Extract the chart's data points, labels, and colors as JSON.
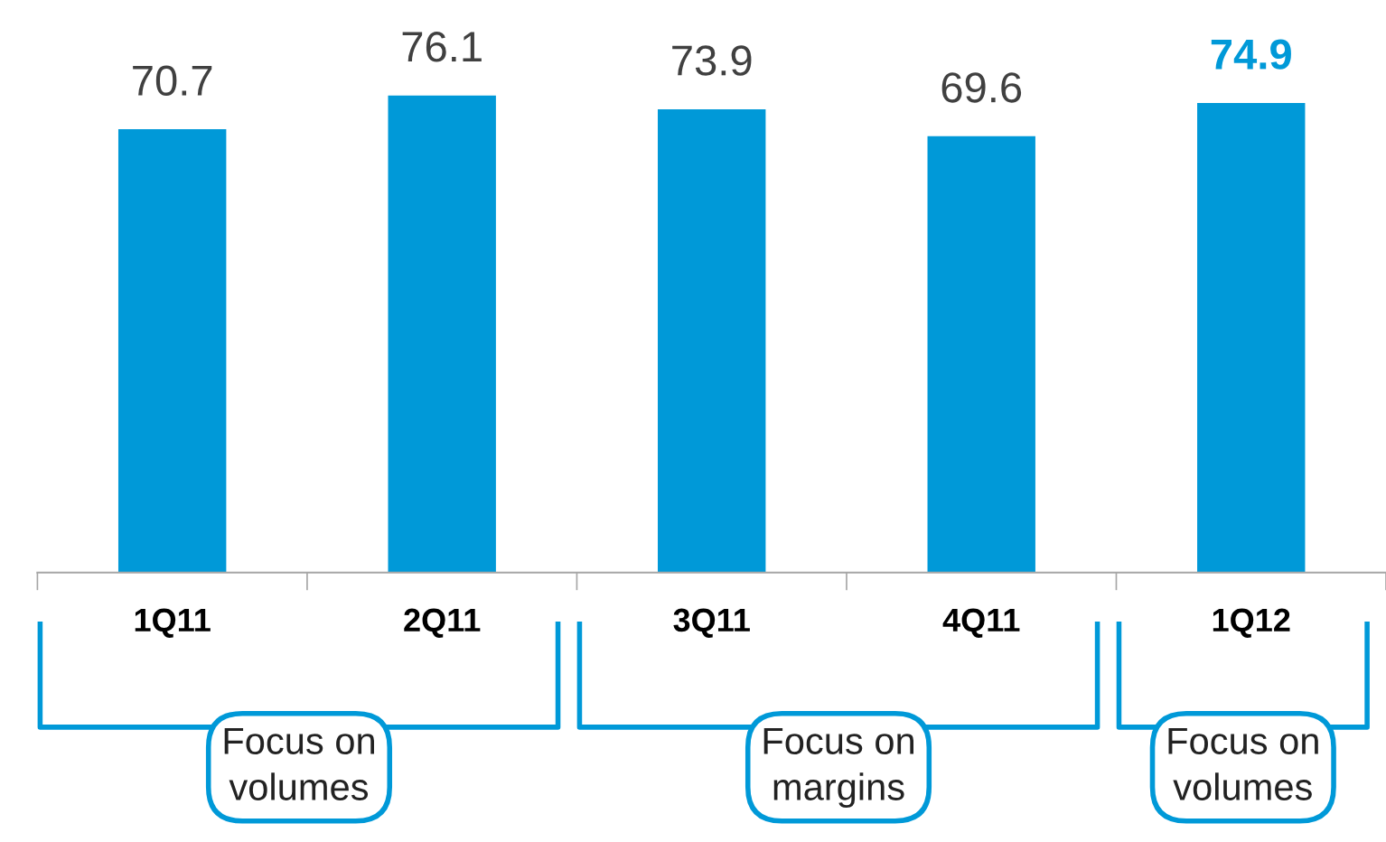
{
  "chart_data": {
    "type": "bar",
    "categories": [
      "1Q11",
      "2Q11",
      "3Q11",
      "4Q11",
      "1Q12"
    ],
    "values": [
      70.7,
      76.1,
      73.9,
      69.6,
      74.9
    ],
    "color": "#0099d8",
    "data_labels": true,
    "grid": false,
    "legend": false,
    "tick_labels": "x",
    "annotations": [
      "Focus on\nvolumes",
      "Focus on\nmargins",
      "Focus on\nvolumes"
    ]
  }
}
